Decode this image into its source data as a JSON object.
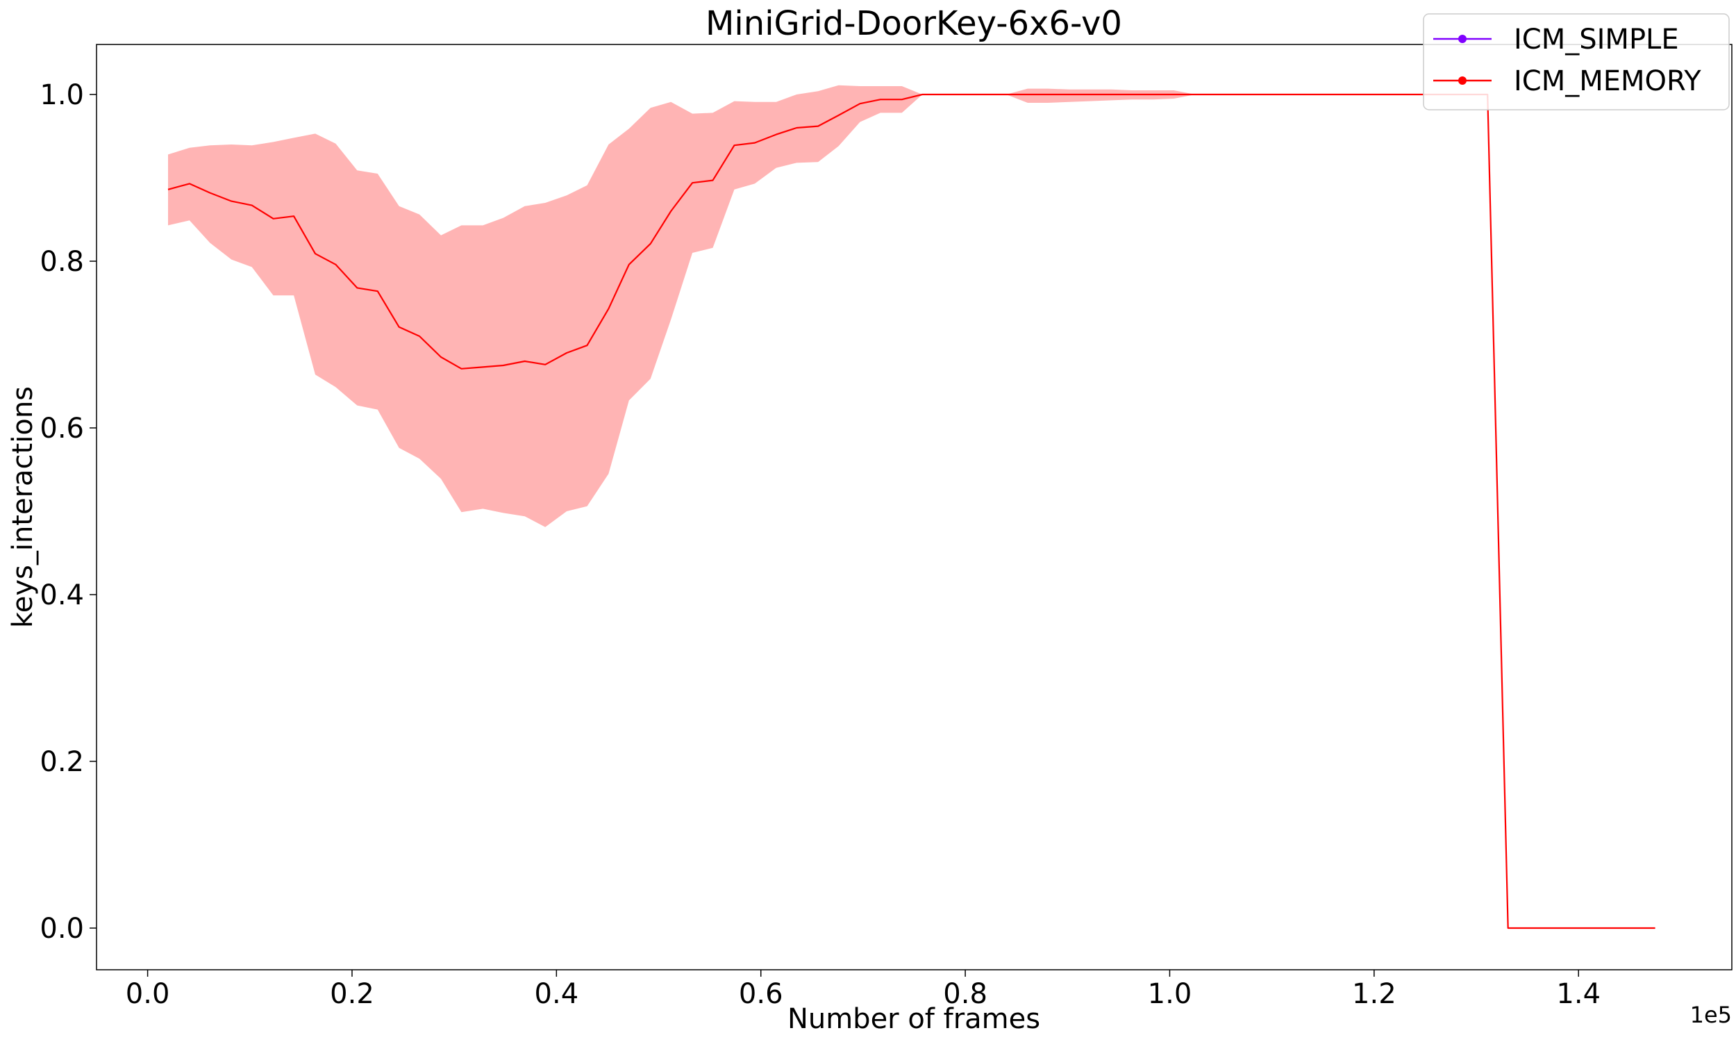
{
  "chart_data": {
    "type": "line",
    "title": "MiniGrid-DoorKey-6x6-v0",
    "xlabel": "Number of frames",
    "ylabel": "keys_interactions",
    "x_offset_label": "1e5",
    "x_scale": 100000,
    "xlim": [
      -5000,
      155000
    ],
    "ylim": [
      -0.05,
      1.06
    ],
    "x_ticks": [
      0,
      20000,
      40000,
      60000,
      80000,
      100000,
      120000,
      140000
    ],
    "x_tick_labels": [
      "0.0",
      "0.2",
      "0.4",
      "0.6",
      "0.8",
      "1.0",
      "1.2",
      "1.4"
    ],
    "y_ticks": [
      0,
      0.2,
      0.4,
      0.6,
      0.8,
      1.0
    ],
    "y_tick_labels": [
      "0.0",
      "0.2",
      "0.4",
      "0.6",
      "0.8",
      "1.0"
    ],
    "grid": false,
    "legend_position": "top-right",
    "series": [
      {
        "name": "ICM_SIMPLE",
        "color": "#8000ff",
        "x": [],
        "y": []
      },
      {
        "name": "ICM_MEMORY",
        "color": "#ff0000",
        "band_color": "#ffb0b0",
        "x": [
          2000,
          4100,
          6100,
          8200,
          10200,
          12300,
          14300,
          16400,
          18400,
          20500,
          22500,
          24600,
          26600,
          28700,
          30700,
          32800,
          34800,
          36900,
          38900,
          41000,
          43000,
          45100,
          47100,
          49200,
          51200,
          53300,
          55300,
          57400,
          59400,
          61500,
          63500,
          65600,
          67600,
          69700,
          71700,
          73800,
          75800,
          77900,
          79900,
          82000,
          84000,
          86100,
          88100,
          90200,
          92200,
          94300,
          96300,
          98400,
          100400,
          102500,
          104500,
          106600,
          108600,
          110700,
          112700,
          114800,
          116800,
          118900,
          120900,
          123000,
          125000,
          127100,
          129100,
          131100,
          133100,
          135200,
          137200,
          139300,
          141300,
          143400,
          145400,
          147500
        ],
        "y": [
          0.886,
          0.893,
          0.882,
          0.872,
          0.867,
          0.851,
          0.854,
          0.809,
          0.796,
          0.768,
          0.764,
          0.721,
          0.71,
          0.685,
          0.671,
          0.673,
          0.675,
          0.68,
          0.676,
          0.69,
          0.699,
          0.743,
          0.796,
          0.821,
          0.86,
          0.894,
          0.897,
          0.939,
          0.942,
          0.952,
          0.96,
          0.962,
          0.975,
          0.989,
          0.994,
          0.994,
          1.0,
          1.0,
          1.0,
          1.0,
          1.0,
          1.0,
          1.0,
          1.0,
          1.0,
          1.0,
          1.0,
          1.0,
          1.0,
          1.0,
          1.0,
          1.0,
          1.0,
          1.0,
          1.0,
          1.0,
          1.0,
          1.0,
          1.0,
          1.0,
          1.0,
          1.0,
          1.0,
          1.0,
          0.0,
          0.0,
          0.0,
          0.0,
          0.0,
          0.0,
          0.0,
          0.0
        ],
        "y_upper": [
          0.928,
          0.936,
          0.939,
          0.94,
          0.939,
          0.943,
          0.948,
          0.953,
          0.941,
          0.909,
          0.905,
          0.866,
          0.856,
          0.831,
          0.843,
          0.843,
          0.852,
          0.866,
          0.87,
          0.879,
          0.891,
          0.94,
          0.959,
          0.984,
          0.991,
          0.977,
          0.978,
          0.992,
          0.991,
          0.991,
          1.0,
          1.004,
          1.011,
          1.01,
          1.01,
          1.01,
          1.0,
          1.0,
          1.0,
          1.0,
          1.0,
          1.007,
          1.007,
          1.006,
          1.006,
          1.006,
          1.005,
          1.005,
          1.005,
          1.0,
          1.0,
          1.0,
          1.0,
          1.0,
          1.0,
          1.0,
          1.0,
          1.0,
          1.0,
          1.0,
          1.0,
          1.0,
          1.0,
          1.0,
          0.0,
          0.0,
          0.0,
          0.0,
          0.0,
          0.0,
          0.0,
          0.0
        ],
        "y_lower": [
          0.843,
          0.849,
          0.822,
          0.802,
          0.793,
          0.759,
          0.759,
          0.664,
          0.649,
          0.627,
          0.622,
          0.576,
          0.563,
          0.539,
          0.499,
          0.503,
          0.498,
          0.494,
          0.481,
          0.5,
          0.506,
          0.545,
          0.633,
          0.659,
          0.73,
          0.81,
          0.816,
          0.886,
          0.893,
          0.912,
          0.918,
          0.919,
          0.938,
          0.967,
          0.978,
          0.978,
          1.0,
          1.0,
          1.0,
          1.0,
          1.0,
          0.99,
          0.99,
          0.991,
          0.992,
          0.993,
          0.994,
          0.994,
          0.995,
          1.0,
          1.0,
          1.0,
          1.0,
          1.0,
          1.0,
          1.0,
          1.0,
          1.0,
          1.0,
          1.0,
          1.0,
          1.0,
          1.0,
          1.0,
          0.0,
          0.0,
          0.0,
          0.0,
          0.0,
          0.0,
          0.0,
          0.0
        ]
      }
    ]
  }
}
